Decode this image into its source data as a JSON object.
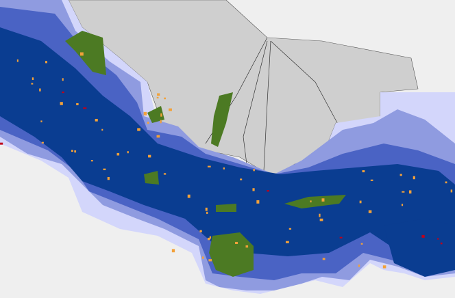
{
  "map": {
    "colors": {
      "background": "#efefef",
      "mountain": "#cfcfcf",
      "class_lightest": "#d3d6fb",
      "class_light": "#8f9be0",
      "class_mid": "#4a63c4",
      "class_dark": "#0a3d91",
      "park": "#4c7a23",
      "highlight_orange": "#f2a13a",
      "highlight_red": "#c0001a"
    }
  }
}
